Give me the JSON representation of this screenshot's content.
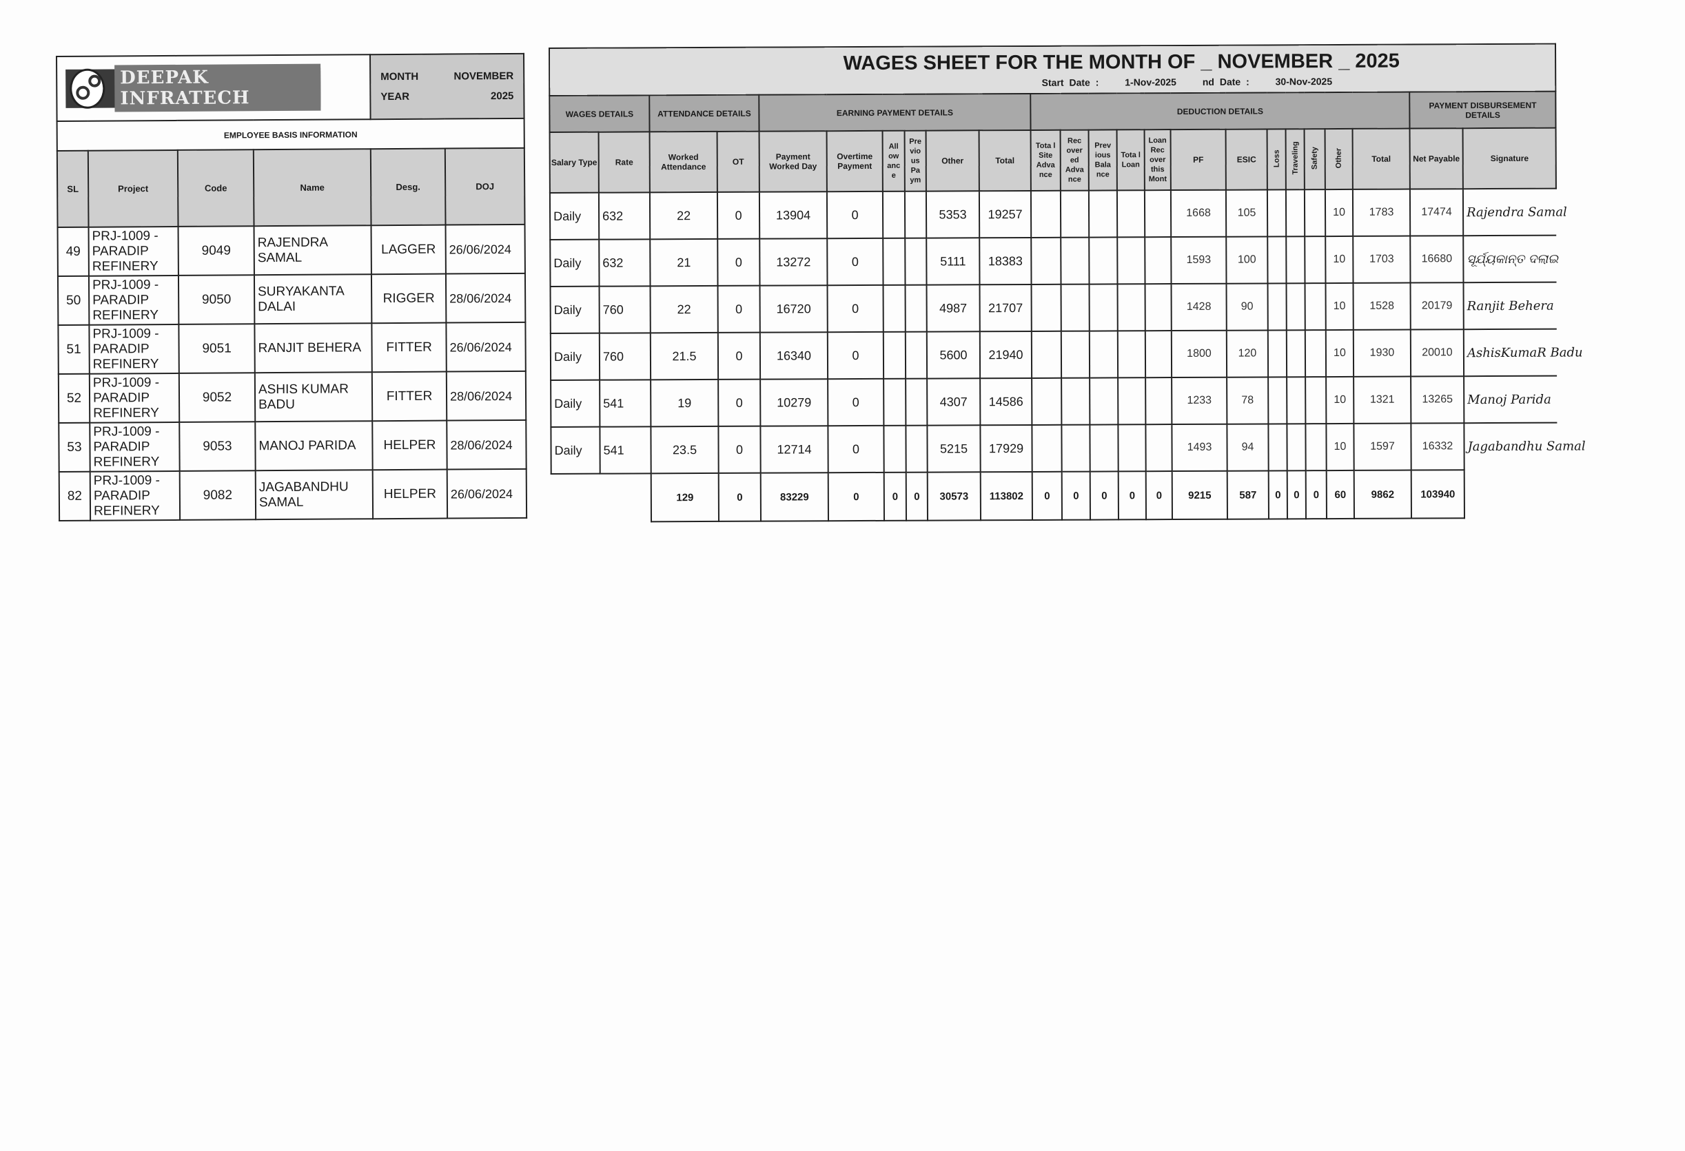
{
  "company": {
    "name": "DEEPAK INFRATECH"
  },
  "period": {
    "month_label": "MONTH",
    "month": "NOVEMBER",
    "year_label": "YEAR",
    "year": "2025"
  },
  "left": {
    "section_title": "EMPLOYEE BASIS INFORMATION",
    "headers": [
      "SL",
      "Project",
      "Code",
      "Name",
      "Desg.",
      "DOJ"
    ]
  },
  "sheet": {
    "title": "WAGES SHEET FOR THE MONTH OF _ NOVEMBER _ 2025",
    "start_label": "Start Date :",
    "start_date": "1-Nov-2025",
    "end_label": "nd Date :",
    "end_date": "30-Nov-2025",
    "groups": [
      "WAGES DETAILS",
      "ATTENDANCE DETAILS",
      "EARNING PAYMENT DETAILS",
      "DEDUCTION DETAILS",
      "PAYMENT DISBURSEMENT DETAILS"
    ],
    "headers": [
      "Salary Type",
      "Rate",
      "Worked Attendance",
      "OT",
      "Payment Worked Day",
      "Overtime Payment",
      "All ow anc e",
      "Pre vio us Pa ym",
      "Other",
      "Total",
      "Tota l Site Adva nce",
      "Rec over ed Adva nce",
      "Prev ious Bala nce",
      "Tota l Loan",
      "Loan Rec over this Mont",
      "PF",
      "ESIC",
      "Loss",
      "Traveling",
      "Safety",
      "Other",
      "Total",
      "Net Payable",
      "Signature"
    ]
  },
  "employees": [
    {
      "sl": "49",
      "project": "PRJ-1009 - PARADIP REFINERY",
      "code": "9049",
      "name": "RAJENDRA SAMAL",
      "desg": "LAGGER",
      "doj": "26/06/2024",
      "type": "Daily",
      "rate": "632",
      "att": "22",
      "ot": "0",
      "pwd": "13904",
      "otpay": "0",
      "allow": "",
      "prev": "",
      "other": "5353",
      "total": "19257",
      "siteadv": "",
      "recadv": "",
      "prevbal": "",
      "loan": "",
      "loanrec": "",
      "pf": "1668",
      "esic": "105",
      "loss": "",
      "travel": "",
      "safety": "",
      "dother": "10",
      "dtotal": "1783",
      "net": "17474",
      "signature": "Rajendra Samal"
    },
    {
      "sl": "50",
      "project": "PRJ-1009 - PARADIP REFINERY",
      "code": "9050",
      "name": "SURYAKANTA DALAI",
      "desg": "RIGGER",
      "doj": "28/06/2024",
      "type": "Daily",
      "rate": "632",
      "att": "21",
      "ot": "0",
      "pwd": "13272",
      "otpay": "0",
      "allow": "",
      "prev": "",
      "other": "5111",
      "total": "18383",
      "siteadv": "",
      "recadv": "",
      "prevbal": "",
      "loan": "",
      "loanrec": "",
      "pf": "1593",
      "esic": "100",
      "loss": "",
      "travel": "",
      "safety": "",
      "dother": "10",
      "dtotal": "1703",
      "net": "16680",
      "signature": "ସୂର୍ଯ୍ୟକାନ୍ତ ଦଲାଇ"
    },
    {
      "sl": "51",
      "project": "PRJ-1009 - PARADIP REFINERY",
      "code": "9051",
      "name": "RANJIT BEHERA",
      "desg": "FITTER",
      "doj": "26/06/2024",
      "type": "Daily",
      "rate": "760",
      "att": "22",
      "ot": "0",
      "pwd": "16720",
      "otpay": "0",
      "allow": "",
      "prev": "",
      "other": "4987",
      "total": "21707",
      "siteadv": "",
      "recadv": "",
      "prevbal": "",
      "loan": "",
      "loanrec": "",
      "pf": "1428",
      "esic": "90",
      "loss": "",
      "travel": "",
      "safety": "",
      "dother": "10",
      "dtotal": "1528",
      "net": "20179",
      "signature": "Ranjit Behera"
    },
    {
      "sl": "52",
      "project": "PRJ-1009 - PARADIP REFINERY",
      "code": "9052",
      "name": "ASHIS KUMAR BADU",
      "desg": "FITTER",
      "doj": "28/06/2024",
      "type": "Daily",
      "rate": "760",
      "att": "21.5",
      "ot": "0",
      "pwd": "16340",
      "otpay": "0",
      "allow": "",
      "prev": "",
      "other": "5600",
      "total": "21940",
      "siteadv": "",
      "recadv": "",
      "prevbal": "",
      "loan": "",
      "loanrec": "",
      "pf": "1800",
      "esic": "120",
      "loss": "",
      "travel": "",
      "safety": "",
      "dother": "10",
      "dtotal": "1930",
      "net": "20010",
      "signature": "AshisKumaR Badu"
    },
    {
      "sl": "53",
      "project": "PRJ-1009 - PARADIP REFINERY",
      "code": "9053",
      "name": "MANOJ PARIDA",
      "desg": "HELPER",
      "doj": "28/06/2024",
      "type": "Daily",
      "rate": "541",
      "att": "19",
      "ot": "0",
      "pwd": "10279",
      "otpay": "0",
      "allow": "",
      "prev": "",
      "other": "4307",
      "total": "14586",
      "siteadv": "",
      "recadv": "",
      "prevbal": "",
      "loan": "",
      "loanrec": "",
      "pf": "1233",
      "esic": "78",
      "loss": "",
      "travel": "",
      "safety": "",
      "dother": "10",
      "dtotal": "1321",
      "net": "13265",
      "signature": "Manoj Parida"
    },
    {
      "sl": "82",
      "project": "PRJ-1009 - PARADIP REFINERY",
      "code": "9082",
      "name": "JAGABANDHU SAMAL",
      "desg": "HELPER",
      "doj": "26/06/2024",
      "type": "Daily",
      "rate": "541",
      "att": "23.5",
      "ot": "0",
      "pwd": "12714",
      "otpay": "0",
      "allow": "",
      "prev": "",
      "other": "5215",
      "total": "17929",
      "siteadv": "",
      "recadv": "",
      "prevbal": "",
      "loan": "",
      "loanrec": "",
      "pf": "1493",
      "esic": "94",
      "loss": "",
      "travel": "",
      "safety": "",
      "dother": "10",
      "dtotal": "1597",
      "net": "16332",
      "signature": "Jagabandhu Samal"
    }
  ],
  "totals": {
    "att": "129",
    "ot": "0",
    "pwd": "83229",
    "otpay": "0",
    "allow": "0",
    "prev": "0",
    "other": "30573",
    "total": "113802",
    "siteadv": "0",
    "recadv": "0",
    "prevbal": "0",
    "loan": "0",
    "loanrec": "0",
    "pf": "9215",
    "esic": "587",
    "loss": "0",
    "travel": "0",
    "safety": "0",
    "dother": "60",
    "dtotal": "9862",
    "net": "103940"
  }
}
